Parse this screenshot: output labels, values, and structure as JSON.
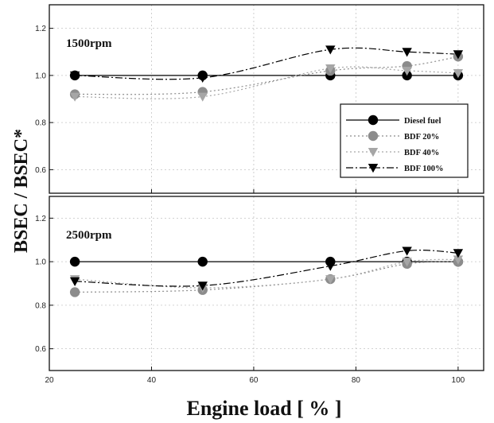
{
  "chart_data": {
    "type": "line",
    "ylabel": "BSEC / BSEC*",
    "xlabel": "Engine load [ % ]",
    "xlim": [
      20,
      105
    ],
    "xticks": [
      20,
      40,
      60,
      80,
      100
    ],
    "ylim": [
      0.5,
      1.3
    ],
    "yticks": [
      0.6,
      0.8,
      1.0,
      1.2
    ],
    "ytick_labels": [
      "0.6",
      "0.8",
      "1.0",
      "1.2"
    ],
    "grid": true,
    "legend": {
      "placement": "inside-right",
      "panel": 0
    },
    "x": [
      25,
      50,
      75,
      90,
      100
    ],
    "panels": [
      {
        "label": "1500rpm",
        "series": [
          {
            "name": "Diesel fuel",
            "marker": "circle",
            "color": "#000000",
            "line": "solid",
            "values": [
              1.0,
              1.0,
              1.0,
              1.0,
              1.0
            ]
          },
          {
            "name": "BDF  20%",
            "marker": "circle",
            "color": "#8c8c8c",
            "line": "dotted",
            "values": [
              0.92,
              0.93,
              1.02,
              1.04,
              1.08
            ]
          },
          {
            "name": "BDF  40%",
            "marker": "triangle-down",
            "color": "#a6a6a6",
            "line": "dotted",
            "values": [
              0.91,
              0.91,
              1.03,
              1.02,
              1.01
            ]
          },
          {
            "name": "BDF 100%",
            "marker": "triangle-down",
            "color": "#000000",
            "line": "dashdot",
            "values": [
              1.0,
              0.99,
              1.11,
              1.1,
              1.09
            ]
          }
        ]
      },
      {
        "label": "2500rpm",
        "series": [
          {
            "name": "Diesel fuel",
            "marker": "circle",
            "color": "#000000",
            "line": "solid",
            "values": [
              1.0,
              1.0,
              1.0,
              1.0,
              1.0
            ]
          },
          {
            "name": "BDF  20%",
            "marker": "circle",
            "color": "#8c8c8c",
            "line": "dotted",
            "values": [
              0.86,
              0.87,
              0.92,
              0.99,
              1.0
            ]
          },
          {
            "name": "BDF  40%",
            "marker": "triangle-down",
            "color": "#a6a6a6",
            "line": "dotted",
            "values": [
              0.92,
              0.88,
              0.92,
              1.0,
              1.01
            ]
          },
          {
            "name": "BDF 100%",
            "marker": "triangle-down",
            "color": "#000000",
            "line": "dashdot",
            "values": [
              0.91,
              0.89,
              0.98,
              1.05,
              1.04
            ]
          }
        ]
      }
    ]
  }
}
